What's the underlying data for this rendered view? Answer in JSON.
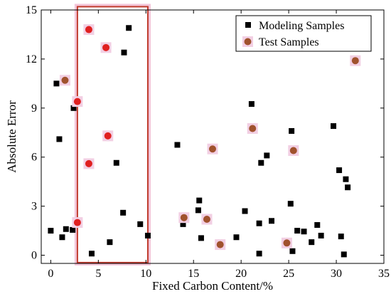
{
  "chart_data": {
    "type": "scatter",
    "title": "",
    "xlabel": "Fixed Carbon Content/%",
    "ylabel": "Absolute Error",
    "xlim": [
      -1,
      35
    ],
    "ylim": [
      -0.5,
      15
    ],
    "xticks": [
      0,
      5,
      10,
      15,
      20,
      25,
      30,
      35
    ],
    "yticks": [
      0,
      3,
      6,
      9,
      12,
      15
    ],
    "grid": false,
    "legend_position": "top-right",
    "highlight_region": {
      "x": [
        2.8,
        10.2
      ],
      "y": [
        -0.45,
        15.2
      ],
      "color": "#c0392b"
    },
    "series": [
      {
        "name": "Modeling Samples",
        "marker": "square",
        "color": "#000000",
        "points": [
          [
            0.0,
            1.5
          ],
          [
            0.6,
            10.5
          ],
          [
            0.9,
            7.1
          ],
          [
            1.2,
            1.1
          ],
          [
            1.6,
            1.6
          ],
          [
            2.3,
            1.55
          ],
          [
            2.4,
            9.0
          ],
          [
            4.3,
            0.1
          ],
          [
            6.2,
            0.8
          ],
          [
            6.9,
            5.65
          ],
          [
            7.6,
            2.6
          ],
          [
            7.7,
            12.4
          ],
          [
            8.2,
            13.9
          ],
          [
            9.4,
            1.9
          ],
          [
            10.2,
            1.2
          ],
          [
            13.3,
            6.75
          ],
          [
            13.9,
            1.9
          ],
          [
            15.5,
            2.75
          ],
          [
            15.6,
            3.35
          ],
          [
            15.8,
            1.05
          ],
          [
            19.5,
            1.1
          ],
          [
            20.4,
            2.7
          ],
          [
            21.1,
            9.25
          ],
          [
            21.9,
            0.1
          ],
          [
            21.9,
            1.95
          ],
          [
            22.1,
            5.65
          ],
          [
            22.7,
            6.1
          ],
          [
            23.2,
            2.1
          ],
          [
            25.2,
            3.15
          ],
          [
            25.3,
            7.6
          ],
          [
            25.4,
            0.25
          ],
          [
            25.9,
            1.5
          ],
          [
            26.6,
            1.45
          ],
          [
            27.4,
            0.8
          ],
          [
            28.0,
            1.85
          ],
          [
            28.4,
            1.2
          ],
          [
            29.7,
            7.9
          ],
          [
            30.3,
            5.2
          ],
          [
            30.5,
            1.15
          ],
          [
            30.8,
            0.05
          ],
          [
            31.0,
            4.65
          ],
          [
            31.2,
            4.15
          ]
        ]
      },
      {
        "name": "Test Samples",
        "marker": "circle",
        "color": "#a0522d",
        "highlight_color": "#e02020",
        "points": [
          [
            1.5,
            10.7
          ],
          [
            2.8,
            9.4
          ],
          [
            2.8,
            2.0
          ],
          [
            4.0,
            13.8
          ],
          [
            4.0,
            5.6
          ],
          [
            5.8,
            12.7
          ],
          [
            6.0,
            7.3
          ],
          [
            14.0,
            2.3
          ],
          [
            16.4,
            2.2
          ],
          [
            17.0,
            6.5
          ],
          [
            17.8,
            0.65
          ],
          [
            21.2,
            7.75
          ],
          [
            24.8,
            0.75
          ],
          [
            25.5,
            6.4
          ],
          [
            32.0,
            11.9
          ]
        ]
      }
    ]
  }
}
